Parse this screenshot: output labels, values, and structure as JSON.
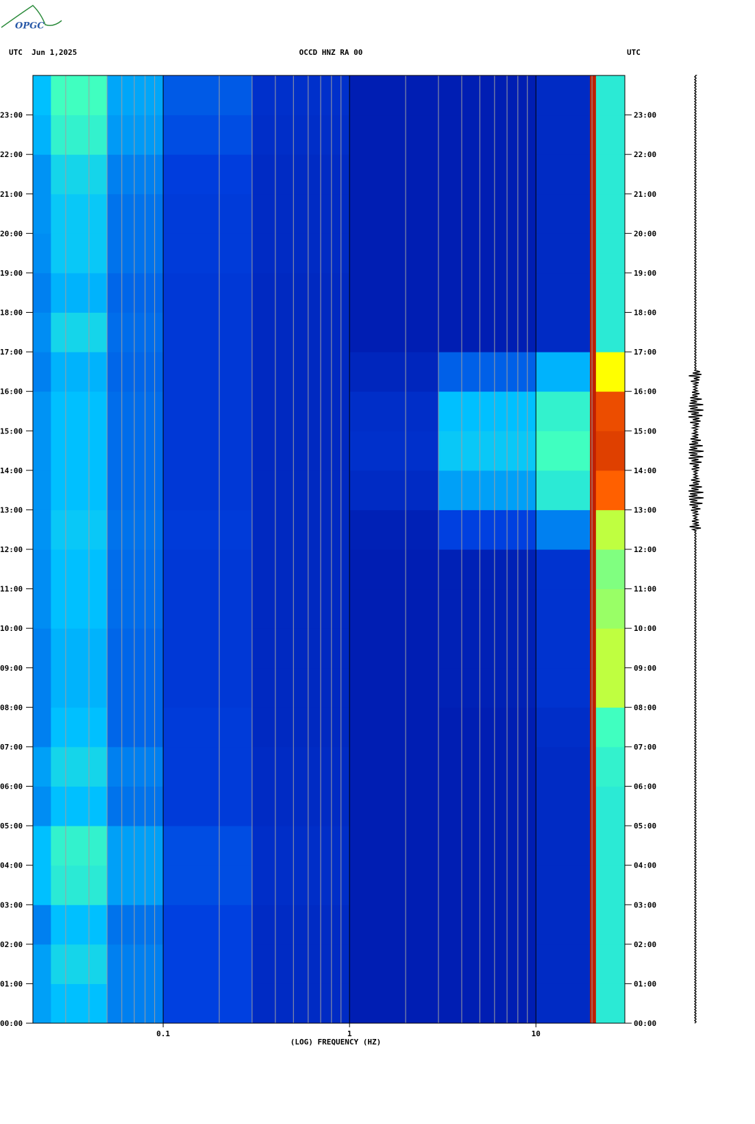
{
  "logo": "OPGC",
  "chart_data": {
    "type": "spectrogram",
    "title": "OCCD HNZ RA 00",
    "left_header": "UTC  Jun 1,2025",
    "right_header": "UTC",
    "x_label": "(LOG) FREQUENCY (HZ)",
    "xscale": "log",
    "xlim": [
      0.02,
      30
    ],
    "xticks": [
      0.1,
      1,
      10
    ],
    "xminorticks": [
      0.03,
      0.04,
      0.05,
      0.06,
      0.07,
      0.08,
      0.09,
      0.2,
      0.3,
      0.4,
      0.5,
      0.6,
      0.7,
      0.8,
      0.9,
      2,
      3,
      4,
      5,
      6,
      7,
      8,
      9,
      20
    ],
    "ylim": [
      0,
      24
    ],
    "yticks": [
      {
        "value": 0,
        "label": "00:00"
      },
      {
        "value": 1,
        "label": "01:00"
      },
      {
        "value": 2,
        "label": "02:00"
      },
      {
        "value": 3,
        "label": "03:00"
      },
      {
        "value": 4,
        "label": "04:00"
      },
      {
        "value": 5,
        "label": "05:00"
      },
      {
        "value": 6,
        "label": "06:00"
      },
      {
        "value": 7,
        "label": "07:00"
      },
      {
        "value": 8,
        "label": "08:00"
      },
      {
        "value": 9,
        "label": "09:00"
      },
      {
        "value": 10,
        "label": "10:00"
      },
      {
        "value": 11,
        "label": "11:00"
      },
      {
        "value": 12,
        "label": "12:00"
      },
      {
        "value": 13,
        "label": "13:00"
      },
      {
        "value": 14,
        "label": "14:00"
      },
      {
        "value": 15,
        "label": "15:00"
      },
      {
        "value": 16,
        "label": "16:00"
      },
      {
        "value": 17,
        "label": "17:00"
      },
      {
        "value": 18,
        "label": "18:00"
      },
      {
        "value": 19,
        "label": "19:00"
      },
      {
        "value": 20,
        "label": "20:00"
      },
      {
        "value": 21,
        "label": "21:00"
      },
      {
        "value": 22,
        "label": "22:00"
      },
      {
        "value": 23,
        "label": "23:00"
      }
    ],
    "frequency_bins": [
      0.02,
      0.025,
      0.05,
      0.1,
      0.3,
      1,
      3,
      10,
      19.5,
      21,
      30
    ],
    "time_bins": [
      0,
      1,
      2,
      3,
      4,
      5,
      6,
      7,
      8,
      9,
      10,
      11,
      12,
      13,
      14,
      15,
      16,
      17,
      18,
      19,
      20,
      21,
      22,
      23,
      24
    ],
    "colorscale": [
      [
        0,
        "#000c9a"
      ],
      [
        0.2,
        "#0040e0"
      ],
      [
        0.4,
        "#00c0ff"
      ],
      [
        0.55,
        "#40ffc0"
      ],
      [
        0.7,
        "#ffff00"
      ],
      [
        0.85,
        "#ff6000"
      ],
      [
        1,
        "#a00000"
      ]
    ],
    "z": [
      [
        0.35,
        0.4,
        0.3,
        0.2,
        0.12,
        0.07,
        0.07,
        0.12,
        0.95,
        0.5
      ],
      [
        0.35,
        0.45,
        0.3,
        0.2,
        0.12,
        0.07,
        0.07,
        0.12,
        0.95,
        0.5
      ],
      [
        0.3,
        0.4,
        0.28,
        0.2,
        0.12,
        0.07,
        0.07,
        0.12,
        0.95,
        0.5
      ],
      [
        0.4,
        0.5,
        0.35,
        0.22,
        0.13,
        0.07,
        0.07,
        0.12,
        0.95,
        0.5
      ],
      [
        0.4,
        0.52,
        0.35,
        0.22,
        0.13,
        0.07,
        0.07,
        0.12,
        0.95,
        0.5
      ],
      [
        0.32,
        0.4,
        0.28,
        0.18,
        0.12,
        0.07,
        0.07,
        0.12,
        0.95,
        0.5
      ],
      [
        0.35,
        0.45,
        0.3,
        0.18,
        0.12,
        0.07,
        0.07,
        0.12,
        0.95,
        0.52
      ],
      [
        0.3,
        0.4,
        0.26,
        0.18,
        0.11,
        0.07,
        0.07,
        0.13,
        0.95,
        0.55
      ],
      [
        0.3,
        0.38,
        0.26,
        0.17,
        0.11,
        0.07,
        0.08,
        0.15,
        0.95,
        0.65
      ],
      [
        0.3,
        0.38,
        0.26,
        0.17,
        0.11,
        0.07,
        0.08,
        0.15,
        0.95,
        0.65
      ],
      [
        0.32,
        0.4,
        0.27,
        0.17,
        0.11,
        0.07,
        0.08,
        0.15,
        0.95,
        0.62
      ],
      [
        0.32,
        0.4,
        0.27,
        0.17,
        0.11,
        0.07,
        0.08,
        0.15,
        0.95,
        0.6
      ],
      [
        0.33,
        0.42,
        0.28,
        0.18,
        0.11,
        0.08,
        0.2,
        0.3,
        0.95,
        0.65
      ],
      [
        0.33,
        0.4,
        0.27,
        0.17,
        0.11,
        0.12,
        0.35,
        0.5,
        0.95,
        0.85
      ],
      [
        0.33,
        0.4,
        0.27,
        0.17,
        0.11,
        0.14,
        0.42,
        0.55,
        0.95,
        0.9
      ],
      [
        0.33,
        0.4,
        0.27,
        0.17,
        0.11,
        0.13,
        0.4,
        0.52,
        0.95,
        0.88
      ],
      [
        0.3,
        0.38,
        0.26,
        0.17,
        0.11,
        0.1,
        0.25,
        0.38,
        0.95,
        0.7
      ],
      [
        0.32,
        0.45,
        0.27,
        0.17,
        0.11,
        0.07,
        0.07,
        0.12,
        0.95,
        0.5
      ],
      [
        0.3,
        0.38,
        0.26,
        0.17,
        0.11,
        0.07,
        0.07,
        0.12,
        0.95,
        0.5
      ],
      [
        0.32,
        0.42,
        0.28,
        0.18,
        0.12,
        0.07,
        0.07,
        0.12,
        0.95,
        0.5
      ],
      [
        0.33,
        0.42,
        0.28,
        0.18,
        0.12,
        0.07,
        0.07,
        0.12,
        0.95,
        0.5
      ],
      [
        0.33,
        0.45,
        0.3,
        0.19,
        0.12,
        0.07,
        0.07,
        0.12,
        0.95,
        0.5
      ],
      [
        0.38,
        0.52,
        0.34,
        0.22,
        0.13,
        0.07,
        0.07,
        0.12,
        0.95,
        0.5
      ],
      [
        0.4,
        0.55,
        0.36,
        0.24,
        0.14,
        0.07,
        0.07,
        0.12,
        0.95,
        0.5
      ]
    ]
  }
}
